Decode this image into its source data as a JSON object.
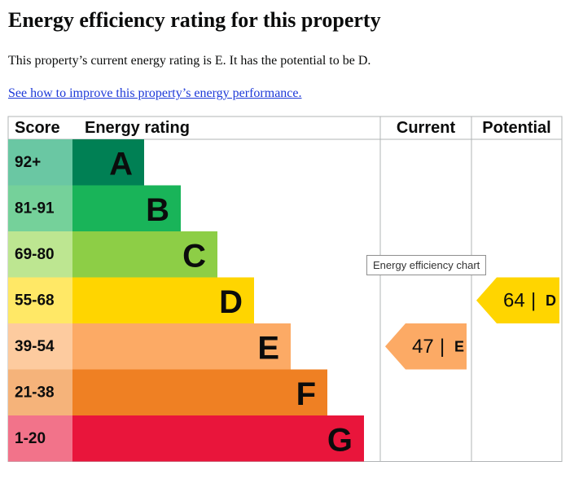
{
  "page": {
    "title": "Energy efficiency rating for this property",
    "summary": "This property’s current energy rating is E. It has the potential to be D.",
    "link_text": "See how to improve this property’s energy performance."
  },
  "tooltip": "Energy efficiency chart",
  "chart_data": {
    "type": "bar",
    "headers": {
      "score": "Score",
      "rating": "Energy rating",
      "current": "Current",
      "potential": "Potential"
    },
    "bands": [
      {
        "score": "92+",
        "letter": "A",
        "color": "#008054",
        "score_bg": "#6ac7a3"
      },
      {
        "score": "81-91",
        "letter": "B",
        "color": "#19b459",
        "score_bg": "#75d19a"
      },
      {
        "score": "69-80",
        "letter": "C",
        "color": "#8dce46",
        "score_bg": "#bde691"
      },
      {
        "score": "55-68",
        "letter": "D",
        "color": "#ffd500",
        "score_bg": "#ffe866"
      },
      {
        "score": "39-54",
        "letter": "E",
        "color": "#fcaa65",
        "score_bg": "#fdcb9f"
      },
      {
        "score": "21-38",
        "letter": "F",
        "color": "#ef8023",
        "score_bg": "#f5b37a"
      },
      {
        "score": "1-20",
        "letter": "G",
        "color": "#e9153b",
        "score_bg": "#f2738a"
      }
    ],
    "current": {
      "value": 47,
      "letter": "E",
      "color": "#fcaa65"
    },
    "potential": {
      "value": 64,
      "letter": "D",
      "color": "#ffd500"
    }
  }
}
